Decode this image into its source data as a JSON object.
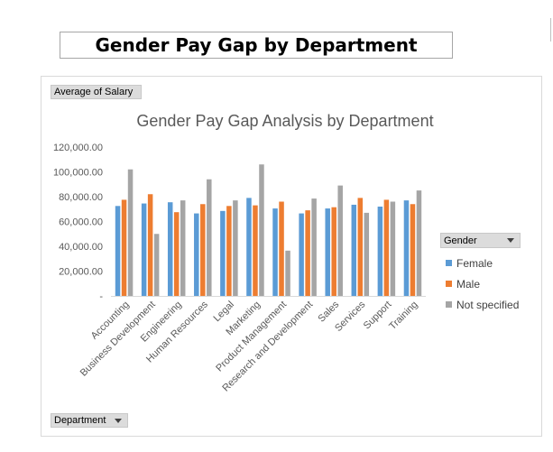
{
  "sheet_title": "Gender Pay Gap by Department",
  "value_field_button": "Average of Salary",
  "legend_field_button": "Gender",
  "axis_field_button": "Department",
  "chart_data": {
    "type": "bar",
    "title": "Gender Pay Gap Analysis by Department",
    "xlabel": "",
    "ylabel": "",
    "ylim": [
      0,
      120000
    ],
    "y_ticks": [
      "-",
      "20,000.00",
      "40,000.00",
      "60,000.00",
      "80,000.00",
      "100,000.00",
      "120,000.00"
    ],
    "grid": false,
    "legend_position": "right",
    "categories": [
      "Accounting",
      "Business Development",
      "Engineering",
      "Human Resources",
      "Legal",
      "Marketing",
      "Product Management",
      "Research and Development",
      "Sales",
      "Services",
      "Support",
      "Training"
    ],
    "series": [
      {
        "name": "Female",
        "color": "#5b9bd5",
        "values": [
          72500,
          74500,
          75500,
          66500,
          68500,
          79000,
          70500,
          66500,
          70500,
          73500,
          72000,
          77000
        ]
      },
      {
        "name": "Male",
        "color": "#ed7d31",
        "values": [
          77500,
          82000,
          67500,
          74000,
          72500,
          73000,
          76000,
          69000,
          71500,
          79000,
          77500,
          74000
        ]
      },
      {
        "name": "Not specified",
        "color": "#a5a5a5",
        "values": [
          102000,
          50000,
          77000,
          94000,
          77000,
          106000,
          36500,
          78500,
          89000,
          67000,
          76000,
          85000
        ]
      }
    ]
  }
}
